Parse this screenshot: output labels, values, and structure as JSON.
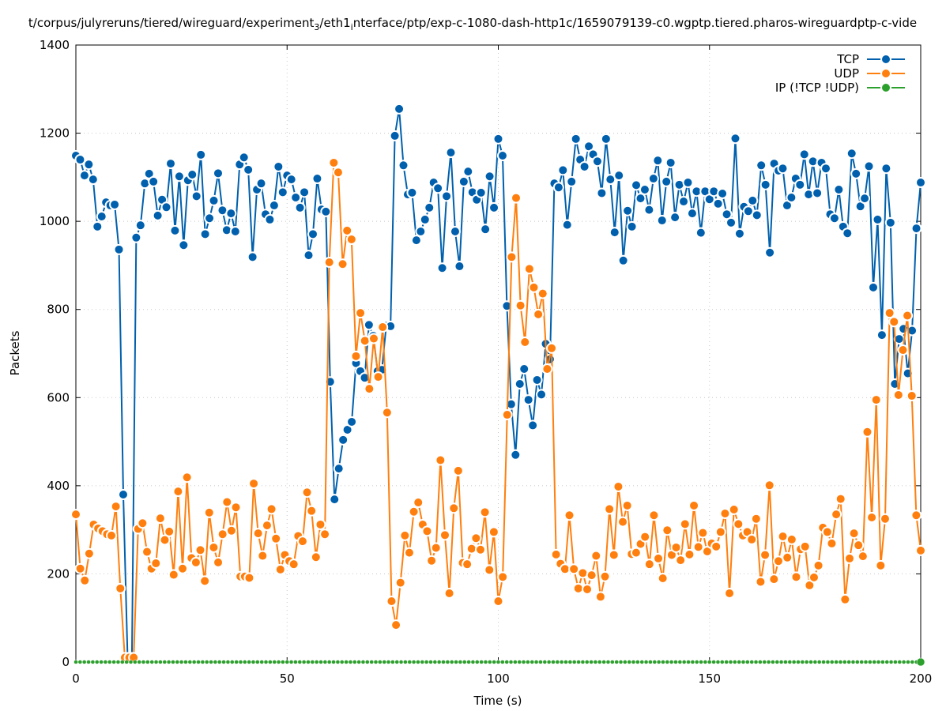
{
  "chart_data": {
    "type": "line",
    "title_parts": [
      "t/corpus/julyreruns/tiered/wireguard/experiment",
      "3",
      "/eth1",
      "i",
      "nterface/ptp/exp-c-1080-dash-http1c/1659079139-c0.wgptp.tiered.pharos-wireguardptp-c-vide"
    ],
    "xlabel": "Time (s)",
    "ylabel": "Packets",
    "xlim": [
      0,
      200
    ],
    "ylim": [
      0,
      1400
    ],
    "x_ticks": [
      "0",
      "50",
      "100",
      "150",
      "200"
    ],
    "y_ticks": [
      "0",
      "200",
      "400",
      "600",
      "800",
      "1000",
      "1200",
      "1400"
    ],
    "grid": true,
    "legend_position": "top-right",
    "series": [
      {
        "name": "TCP",
        "color": "#0060ad",
        "values": [
          1149,
          1140,
          1104,
          1129,
          1095,
          988,
          1011,
          1043,
          1036,
          1038,
          936,
          380,
          10,
          10,
          963,
          991,
          1086,
          1108,
          1090,
          1013,
          1049,
          1032,
          1131,
          979,
          1102,
          946,
          1093,
          1106,
          1057,
          1151,
          971,
          1007,
          1047,
          1109,
          1025,
          980,
          1018,
          977,
          1129,
          1145,
          1117,
          919,
          1072,
          1086,
          1016,
          1004,
          1036,
          1124,
          1066,
          1104,
          1095,
          1054,
          1031,
          1066,
          923,
          971,
          1097,
          1027,
          1022,
          636,
          369,
          439,
          504,
          527,
          545,
          678,
          660,
          645,
          765,
          740,
          660,
          663,
          763,
          762,
          1194,
          1255,
          1127,
          1061,
          1065,
          957,
          977,
          1004,
          1031,
          1088,
          1075,
          894,
          1057,
          1156,
          977,
          898,
          1090,
          1113,
          1066,
          1049,
          1065,
          982,
          1102,
          1031,
          1187,
          1149,
          808,
          585,
          470,
          631,
          665,
          595,
          537,
          640,
          607,
          722,
          687,
          1086,
          1077,
          1116,
          992,
          1090,
          1187,
          1140,
          1124,
          1170,
          1152,
          1136,
          1064,
          1187,
          1095,
          975,
          1104,
          911,
          1024,
          988,
          1082,
          1052,
          1072,
          1026,
          1097,
          1138,
          1002,
          1090,
          1133,
          1009,
          1083,
          1045,
          1088,
          1018,
          1068,
          974,
          1068,
          1050,
          1068,
          1040,
          1063,
          1016,
          997,
          1188,
          972,
          1033,
          1023,
          1047,
          1014,
          1127,
          1083,
          929,
          1131,
          1115,
          1120,
          1036,
          1054,
          1097,
          1083,
          1152,
          1061,
          1136,
          1064,
          1133,
          1120,
          1016,
          1007,
          1072,
          988,
          973,
          1154,
          1108,
          1034,
          1052,
          1125,
          850,
          1004,
          742,
          1120,
          997,
          631,
          733,
          756,
          655,
          752,
          984,
          1088
        ]
      },
      {
        "name": "UDP",
        "color": "#ff7f0e",
        "values": [
          335,
          212,
          185,
          246,
          312,
          303,
          297,
          290,
          287,
          353,
          167,
          10,
          10,
          10,
          302,
          315,
          250,
          212,
          224,
          326,
          277,
          296,
          198,
          387,
          212,
          419,
          236,
          226,
          254,
          184,
          339,
          260,
          226,
          290,
          363,
          298,
          351,
          194,
          194,
          191,
          405,
          292,
          241,
          310,
          347,
          280,
          210,
          243,
          229,
          222,
          286,
          274,
          385,
          343,
          238,
          312,
          290,
          907,
          1133,
          1111,
          903,
          979,
          959,
          694,
          792,
          729,
          620,
          734,
          647,
          760,
          566,
          138,
          84,
          180,
          287,
          248,
          341,
          362,
          312,
          297,
          230,
          259,
          458,
          288,
          156,
          349,
          434,
          225,
          222,
          257,
          281,
          255,
          340,
          209,
          295,
          138,
          193,
          561,
          919,
          1053,
          809,
          726,
          892,
          850,
          789,
          836,
          665,
          712,
          244,
          223,
          211,
          333,
          211,
          167,
          202,
          165,
          197,
          241,
          148,
          194,
          347,
          243,
          398,
          318,
          355,
          245,
          248,
          268,
          284,
          222,
          333,
          235,
          190,
          299,
          243,
          260,
          231,
          313,
          244,
          355,
          261,
          293,
          251,
          269,
          262,
          295,
          337,
          156,
          346,
          313,
          287,
          295,
          278,
          325,
          182,
          243,
          401,
          188,
          229,
          285,
          237,
          278,
          193,
          256,
          262,
          174,
          192,
          219,
          305,
          295,
          269,
          335,
          370,
          142,
          235,
          292,
          265,
          240,
          522,
          328,
          595,
          219,
          325,
          792,
          772,
          606,
          708,
          786,
          604,
          333,
          253
        ]
      },
      {
        "name": "IP (!TCP  !UDP)",
        "color": "#2ca02c",
        "values_constant": 0,
        "count": 201
      }
    ]
  }
}
